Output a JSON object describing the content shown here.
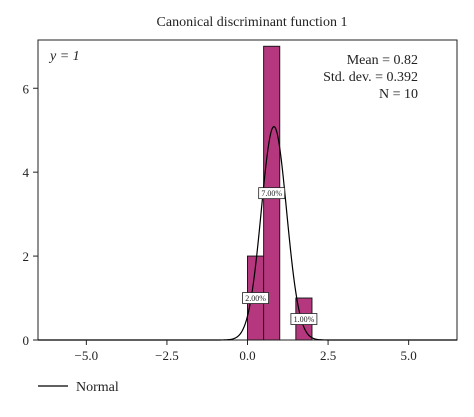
{
  "chart_data": {
    "type": "bar",
    "title": "Canonical discriminant function 1",
    "group_label": "y = 1",
    "bins": [
      {
        "x0": 0.0,
        "x1": 0.5,
        "count": 2,
        "label": "2.00%"
      },
      {
        "x0": 0.5,
        "x1": 1.0,
        "count": 7,
        "label": "7.00%"
      },
      {
        "x0": 1.5,
        "x1": 2.0,
        "count": 1,
        "label": "1.00%"
      }
    ],
    "normal_curve": {
      "mean": 0.82,
      "sd": 0.392,
      "n": 10,
      "bin_width": 0.5
    },
    "stats": {
      "mean": "Mean = 0.82",
      "sd": "Std. dev. = 0.392",
      "n": "N = 10"
    },
    "xlim": [
      -6.5,
      6.5
    ],
    "ylim": [
      0,
      7.15
    ],
    "x_ticks": [
      {
        "value": -5.0,
        "label": "−5.0"
      },
      {
        "value": -2.5,
        "label": "−2.5"
      },
      {
        "value": 0.0,
        "label": "0.0"
      },
      {
        "value": 2.5,
        "label": "2.5"
      },
      {
        "value": 5.0,
        "label": "5.0"
      }
    ],
    "y_ticks": [
      {
        "value": 0,
        "label": "0"
      },
      {
        "value": 2,
        "label": "2"
      },
      {
        "value": 4,
        "label": "4"
      },
      {
        "value": 6,
        "label": "6"
      }
    ],
    "legend": {
      "label": "Normal"
    },
    "bar_color": "#b5387e",
    "bar_edge": "#1a1a1a",
    "curve_color": "#000000"
  }
}
